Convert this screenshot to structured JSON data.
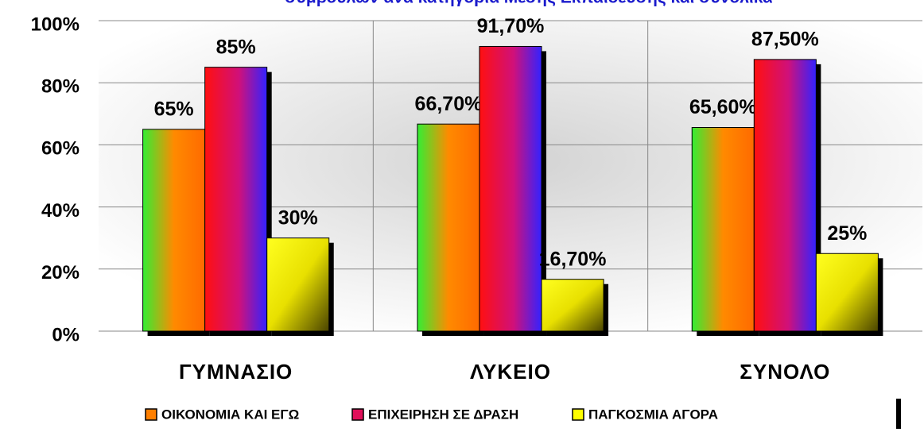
{
  "chart_data": {
    "type": "bar",
    "title": "συμβούλων ανά κατηγορία Μέσης Εκπαίδευσης και συνολικά",
    "categories": [
      "ΓΥΜΝΑΣΙΟ",
      "ΛΥΚΕΙΟ",
      "ΣΥΝΟΛΟ"
    ],
    "series": [
      {
        "name": "ΟΙΚΟΝΟΜΙΑ ΚΑΙ ΕΓΩ",
        "color": "#ff7f00",
        "values": [
          65,
          66.7,
          65.6
        ],
        "value_labels": [
          "65%",
          "66,70%",
          "65,60%"
        ]
      },
      {
        "name": "ΕΠΙΧΕΙΡΗΣΗ ΣΕ ΔΡΑΣΗ",
        "color": "#e0105a",
        "values": [
          85,
          91.7,
          87.5
        ],
        "value_labels": [
          "85%",
          "91,70%",
          "87,50%"
        ]
      },
      {
        "name": "ΠΑΓΚΟΣΜΙΑ ΑΓΟΡΑ",
        "color": "#ffff00",
        "values": [
          30,
          16.7,
          25
        ],
        "value_labels": [
          "30%",
          "16,70%",
          "25%"
        ]
      }
    ],
    "ylim": [
      0,
      100
    ],
    "yticks": [
      {
        "value": 0,
        "label": "0%"
      },
      {
        "value": 20,
        "label": "20%"
      },
      {
        "value": 40,
        "label": "40%"
      },
      {
        "value": 60,
        "label": "60%"
      },
      {
        "value": 80,
        "label": "80%"
      },
      {
        "value": 100,
        "label": "100%"
      }
    ],
    "grid": true,
    "legend": "bottom"
  }
}
